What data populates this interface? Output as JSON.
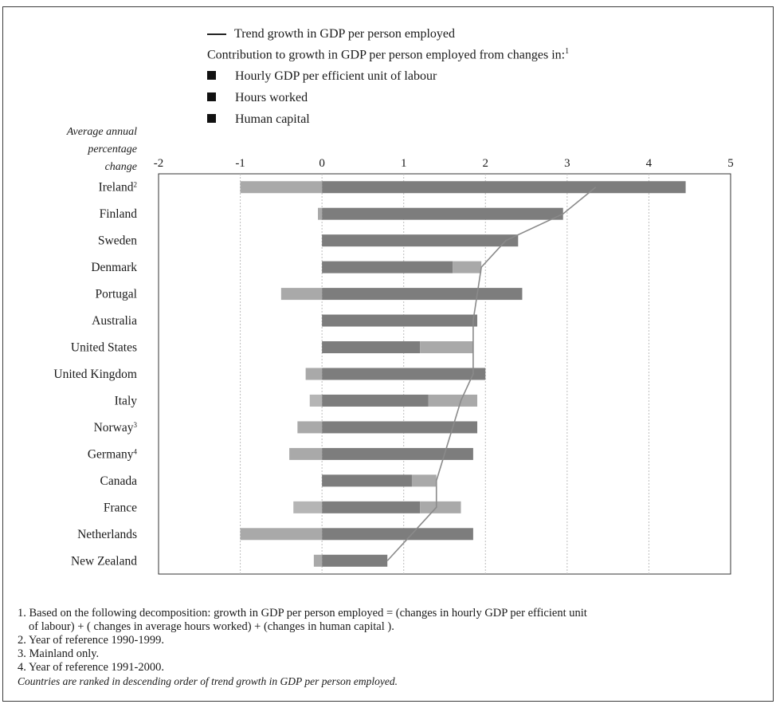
{
  "chart_data": {
    "type": "bar",
    "orientation": "horizontal",
    "stacked": true,
    "legend": {
      "line_entry": "Trend growth in GDP per person employed",
      "header": "Contribution to growth in GDP per person employed from changes in:",
      "header_footnote": "1",
      "placement": "top"
    },
    "ylabel": [
      "Average annual",
      "percentage",
      "change"
    ],
    "x_ticks": [
      "-2",
      "-1",
      "0",
      "1",
      "2",
      "3",
      "4",
      "5"
    ],
    "xlim": [
      -2,
      5
    ],
    "grid": true,
    "categories": [
      {
        "name": "Ireland",
        "sup": "2"
      },
      {
        "name": "Finland",
        "sup": ""
      },
      {
        "name": "Sweden",
        "sup": ""
      },
      {
        "name": "Denmark",
        "sup": ""
      },
      {
        "name": "Portugal",
        "sup": ""
      },
      {
        "name": "Australia",
        "sup": ""
      },
      {
        "name": "United States",
        "sup": ""
      },
      {
        "name": "United Kingdom",
        "sup": ""
      },
      {
        "name": "Italy",
        "sup": ""
      },
      {
        "name": "Norway",
        "sup": "3"
      },
      {
        "name": "Germany",
        "sup": "4"
      },
      {
        "name": "Canada",
        "sup": ""
      },
      {
        "name": "France",
        "sup": ""
      },
      {
        "name": "Netherlands",
        "sup": ""
      },
      {
        "name": "New Zealand",
        "sup": ""
      }
    ],
    "series": [
      {
        "name": "Hourly GDP per efficient unit of labour",
        "color": "#7d7d7d",
        "values": [
          4.45,
          2.95,
          2.4,
          1.6,
          2.45,
          1.9,
          1.2,
          2.0,
          1.3,
          1.9,
          1.85,
          1.1,
          1.2,
          1.85,
          0.8
        ]
      },
      {
        "name": "Hours worked",
        "color": "#a9a9a9",
        "values": [
          -1.0,
          -0.05,
          0.0,
          0.35,
          -0.5,
          0.0,
          0.65,
          -0.2,
          0.6,
          -0.3,
          -0.4,
          0.3,
          0.5,
          -1.0,
          -0.1
        ]
      },
      {
        "name": "Human capital",
        "color": "#b5b5b5",
        "values": [
          0.0,
          0.0,
          0.0,
          0.0,
          0.0,
          0.0,
          0.0,
          0.0,
          -0.15,
          0.0,
          0.0,
          0.0,
          -0.35,
          0.0,
          0.0
        ]
      }
    ],
    "trend": {
      "name": "Trend growth in GDP per person employed",
      "color": "#8a8a8a",
      "values": [
        3.35,
        2.95,
        2.25,
        1.95,
        1.9,
        1.85,
        1.85,
        1.85,
        1.7,
        1.6,
        1.5,
        1.4,
        1.4,
        1.1,
        0.8
      ]
    }
  },
  "notes": {
    "note1_line1": "1. Based on the following decomposition: growth  in GDP per person employed = (changes in hourly GDP per efficient unit",
    "note1_line2": "of labour) + ( changes in average hours worked)  + (changes in human capital ).",
    "note2": "2. Year of reference 1990-1999.",
    "note3": "3. Mainland only.",
    "note4": "4. Year of reference 1991-2000.",
    "ranking": "Countries are ranked in descending order of trend growth in GDP per person employed."
  }
}
